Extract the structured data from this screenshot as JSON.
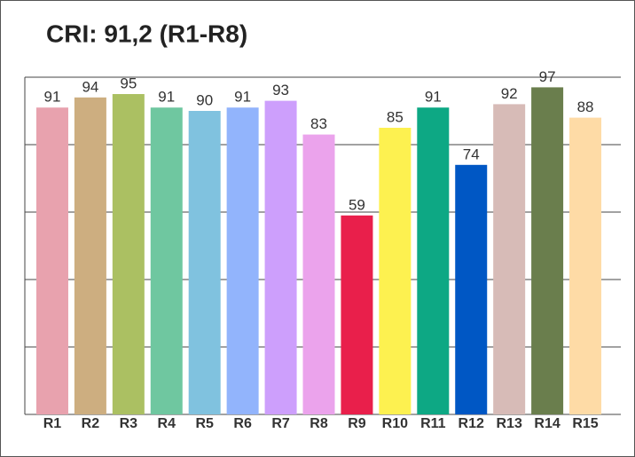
{
  "chart_data": {
    "type": "bar",
    "title": "CRI: 91,2 (R1-R8)",
    "categories": [
      "R1",
      "R2",
      "R3",
      "R4",
      "R5",
      "R6",
      "R7",
      "R8",
      "R9",
      "R10",
      "R11",
      "R12",
      "R13",
      "R14",
      "R15"
    ],
    "values": [
      91,
      94,
      95,
      91,
      90,
      91,
      93,
      83,
      59,
      85,
      91,
      74,
      92,
      97,
      88
    ],
    "colors": [
      "#e8a2ae",
      "#cdae80",
      "#abc062",
      "#6fc7a0",
      "#80c2df",
      "#92b4fc",
      "#cd9ffc",
      "#eba3ec",
      "#e91f4b",
      "#fdf150",
      "#0da884",
      "#0057c4",
      "#d7bbb7",
      "#6a7e4d",
      "#fedba6"
    ],
    "ylim": [
      0,
      100
    ],
    "yticks": [
      0,
      20,
      40,
      60,
      80,
      100
    ],
    "grid": true
  }
}
